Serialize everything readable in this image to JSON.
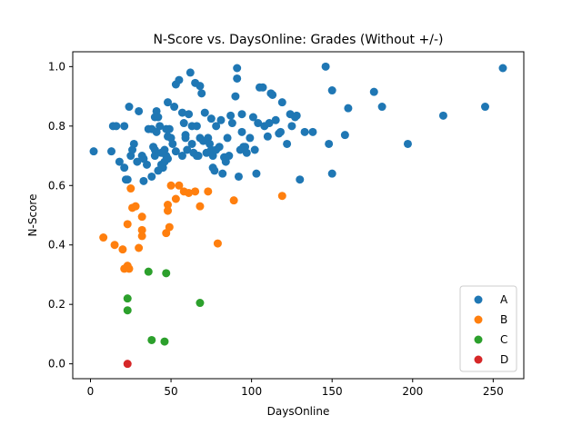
{
  "chart_data": {
    "type": "scatter",
    "title": "N-Score vs. DaysOnline: Grades (Without +/-)",
    "xlabel": "DaysOnline",
    "ylabel": "N-Score",
    "xlim": [
      -11,
      269
    ],
    "ylim": [
      -0.05,
      1.05
    ],
    "xticks": [
      0,
      50,
      100,
      150,
      200,
      250
    ],
    "yticks": [
      0.0,
      0.2,
      0.4,
      0.6,
      0.8,
      1.0
    ],
    "grid": false,
    "legend": "lower-right",
    "series": [
      {
        "name": "A",
        "color": "#1f77b4",
        "points": [
          [
            2,
            0.715
          ],
          [
            13,
            0.715
          ],
          [
            14,
            0.8
          ],
          [
            16,
            0.8
          ],
          [
            18,
            0.68
          ],
          [
            21,
            0.66
          ],
          [
            21,
            0.8
          ],
          [
            22,
            0.62
          ],
          [
            23,
            0.62
          ],
          [
            24,
            0.865
          ],
          [
            25,
            0.7
          ],
          [
            26,
            0.72
          ],
          [
            27,
            0.74
          ],
          [
            29,
            0.68
          ],
          [
            30,
            0.85
          ],
          [
            32,
            0.7
          ],
          [
            33,
            0.615
          ],
          [
            33,
            0.69
          ],
          [
            35,
            0.67
          ],
          [
            36,
            0.79
          ],
          [
            38,
            0.79
          ],
          [
            38,
            0.63
          ],
          [
            39,
            0.73
          ],
          [
            40,
            0.7
          ],
          [
            40,
            0.72
          ],
          [
            40,
            0.83
          ],
          [
            41,
            0.85
          ],
          [
            41,
            0.78
          ],
          [
            42,
            0.65
          ],
          [
            42,
            0.83
          ],
          [
            43,
            0.8
          ],
          [
            44,
            0.67
          ],
          [
            44,
            0.71
          ],
          [
            45,
            0.66
          ],
          [
            46,
            0.72
          ],
          [
            46,
            0.68
          ],
          [
            47,
            0.79
          ],
          [
            47,
            0.7
          ],
          [
            48,
            0.69
          ],
          [
            48,
            0.765
          ],
          [
            48,
            0.88
          ],
          [
            49,
            0.79
          ],
          [
            50,
            0.76
          ],
          [
            51,
            0.74
          ],
          [
            52,
            0.865
          ],
          [
            53,
            0.715
          ],
          [
            53,
            0.94
          ],
          [
            55,
            0.955
          ],
          [
            57,
            0.7
          ],
          [
            57,
            0.845
          ],
          [
            58,
            0.81
          ],
          [
            59,
            0.77
          ],
          [
            59,
            0.76
          ],
          [
            60,
            0.72
          ],
          [
            61,
            0.84
          ],
          [
            62,
            0.98
          ],
          [
            63,
            0.8
          ],
          [
            63,
            0.74
          ],
          [
            64,
            0.71
          ],
          [
            65,
            0.945
          ],
          [
            66,
            0.7
          ],
          [
            66,
            0.8
          ],
          [
            67,
            0.7
          ],
          [
            68,
            0.935
          ],
          [
            68,
            0.76
          ],
          [
            69,
            0.91
          ],
          [
            70,
            0.75
          ],
          [
            71,
            0.845
          ],
          [
            72,
            0.71
          ],
          [
            73,
            0.76
          ],
          [
            74,
            0.74
          ],
          [
            75,
            0.825
          ],
          [
            75,
            0.72
          ],
          [
            76,
            0.66
          ],
          [
            76,
            0.7
          ],
          [
            77,
            0.65
          ],
          [
            78,
            0.8
          ],
          [
            78,
            0.72
          ],
          [
            80,
            0.73
          ],
          [
            81,
            0.82
          ],
          [
            82,
            0.64
          ],
          [
            83,
            0.695
          ],
          [
            84,
            0.68
          ],
          [
            85,
            0.76
          ],
          [
            86,
            0.7
          ],
          [
            87,
            0.835
          ],
          [
            88,
            0.81
          ],
          [
            90,
            0.9
          ],
          [
            91,
            0.995
          ],
          [
            91,
            0.96
          ],
          [
            92,
            0.63
          ],
          [
            93,
            0.72
          ],
          [
            94,
            0.84
          ],
          [
            94,
            0.78
          ],
          [
            95,
            0.73
          ],
          [
            96,
            0.73
          ],
          [
            97,
            0.71
          ],
          [
            99,
            0.76
          ],
          [
            101,
            0.83
          ],
          [
            102,
            0.72
          ],
          [
            103,
            0.64
          ],
          [
            104,
            0.81
          ],
          [
            105,
            0.93
          ],
          [
            107,
            0.93
          ],
          [
            108,
            0.8
          ],
          [
            110,
            0.765
          ],
          [
            111,
            0.81
          ],
          [
            112,
            0.91
          ],
          [
            113,
            0.905
          ],
          [
            115,
            0.82
          ],
          [
            117,
            0.775
          ],
          [
            118,
            0.78
          ],
          [
            119,
            0.88
          ],
          [
            122,
            0.74
          ],
          [
            124,
            0.84
          ],
          [
            125,
            0.8
          ],
          [
            127,
            0.83
          ],
          [
            128,
            0.835
          ],
          [
            130,
            0.62
          ],
          [
            133,
            0.78
          ],
          [
            138,
            0.78
          ],
          [
            146,
            1.0
          ],
          [
            148,
            0.74
          ],
          [
            150,
            0.64
          ],
          [
            150,
            0.92
          ],
          [
            158,
            0.77
          ],
          [
            160,
            0.86
          ],
          [
            176,
            0.915
          ],
          [
            181,
            0.865
          ],
          [
            197,
            0.74
          ],
          [
            219,
            0.835
          ],
          [
            245,
            0.865
          ],
          [
            256,
            0.995
          ]
        ]
      },
      {
        "name": "B",
        "color": "#ff7f0e",
        "points": [
          [
            8,
            0.425
          ],
          [
            15,
            0.4
          ],
          [
            20,
            0.385
          ],
          [
            21,
            0.32
          ],
          [
            23,
            0.33
          ],
          [
            23,
            0.47
          ],
          [
            24,
            0.32
          ],
          [
            25,
            0.59
          ],
          [
            26,
            0.525
          ],
          [
            28,
            0.53
          ],
          [
            30,
            0.39
          ],
          [
            32,
            0.495
          ],
          [
            32,
            0.43
          ],
          [
            32,
            0.45
          ],
          [
            47,
            0.44
          ],
          [
            48,
            0.535
          ],
          [
            48,
            0.515
          ],
          [
            49,
            0.46
          ],
          [
            50,
            0.6
          ],
          [
            53,
            0.555
          ],
          [
            55,
            0.6
          ],
          [
            58,
            0.58
          ],
          [
            61,
            0.575
          ],
          [
            65,
            0.58
          ],
          [
            68,
            0.53
          ],
          [
            73,
            0.58
          ],
          [
            79,
            0.405
          ],
          [
            89,
            0.55
          ],
          [
            119,
            0.565
          ]
        ]
      },
      {
        "name": "C",
        "color": "#2ca02c",
        "points": [
          [
            23,
            0.22
          ],
          [
            23,
            0.18
          ],
          [
            36,
            0.31
          ],
          [
            38,
            0.08
          ],
          [
            46,
            0.075
          ],
          [
            47,
            0.305
          ],
          [
            68,
            0.205
          ]
        ]
      },
      {
        "name": "D",
        "color": "#d62728",
        "points": [
          [
            23,
            0.0
          ]
        ]
      }
    ]
  }
}
